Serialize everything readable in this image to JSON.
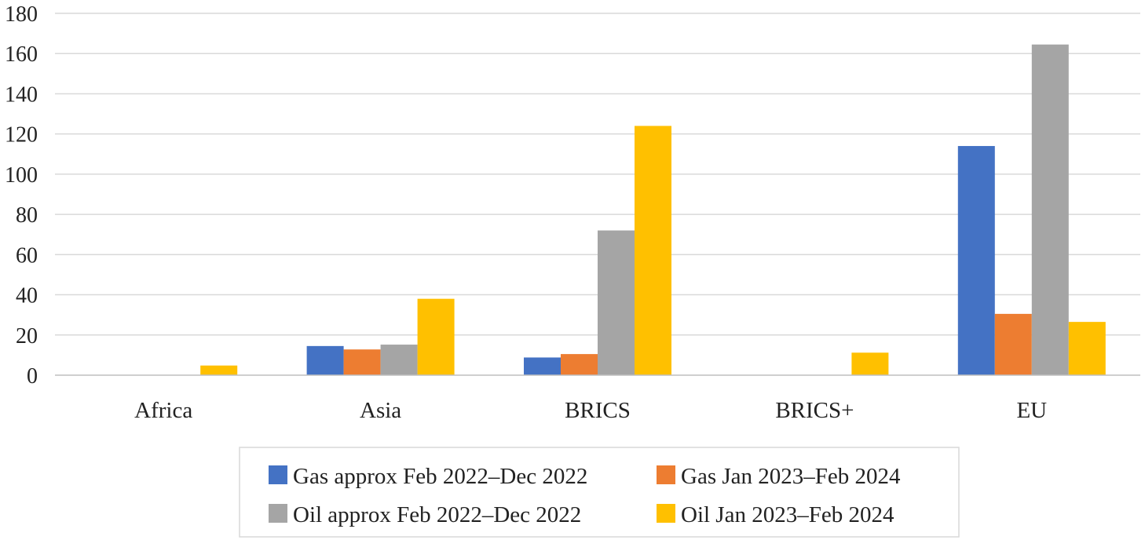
{
  "chart_data": {
    "type": "bar",
    "title": "",
    "xlabel": "",
    "ylabel": "",
    "categories": [
      "Africa",
      "Asia",
      "BRICS",
      "BRICS+",
      "EU"
    ],
    "ylim": [
      0,
      180
    ],
    "yticks": [
      0,
      20,
      40,
      60,
      80,
      100,
      120,
      140,
      160,
      180
    ],
    "grid": true,
    "legend_position": "bottom",
    "series": [
      {
        "name": "Gas approx Feb 2022–Dec 2022",
        "color": "#4472C4",
        "values": [
          0,
          14.5,
          8.8,
          0,
          114
        ]
      },
      {
        "name": "Gas Jan 2023–Feb 2024",
        "color": "#ED7D31",
        "values": [
          0,
          12.8,
          10.5,
          0,
          30.5
        ]
      },
      {
        "name": "Oil approx Feb 2022–Dec 2022",
        "color": "#A5A5A5",
        "values": [
          0,
          15.2,
          72,
          0,
          164.5
        ]
      },
      {
        "name": "Oil Jan 2023–Feb 2024",
        "color": "#FFC000",
        "values": [
          4.8,
          38,
          124,
          11.2,
          26.5
        ]
      }
    ]
  }
}
